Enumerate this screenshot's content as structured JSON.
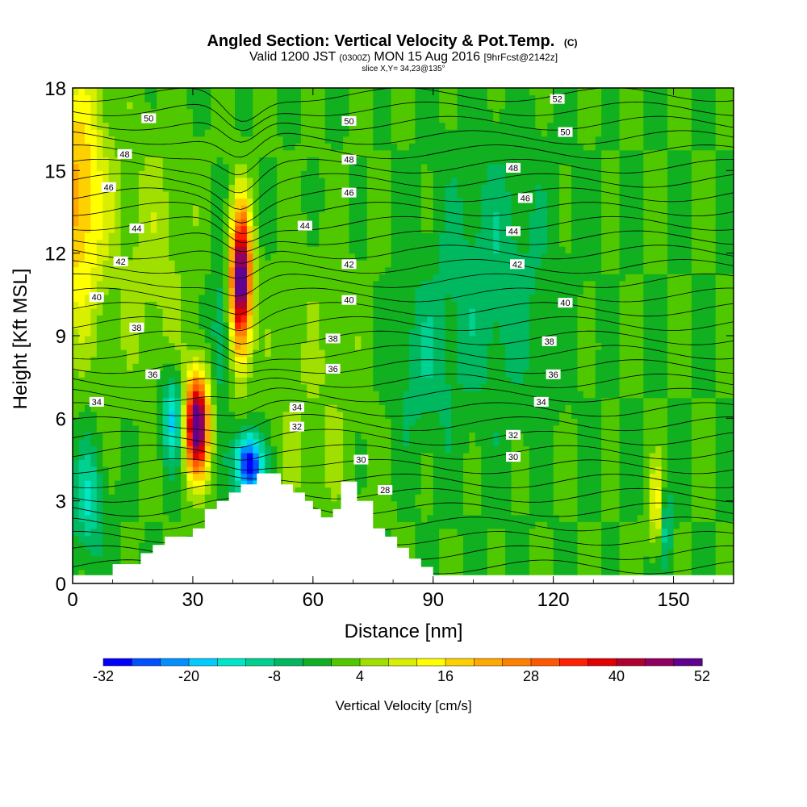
{
  "chart_data": {
    "type": "heatmap",
    "title": "Angled Section: Vertical Velocity & Pot.Temp.",
    "title_unit": "(C)",
    "subtitle_valid": "Valid 1200 JST",
    "subtitle_z": "(0300Z)",
    "subtitle_date": "MON 15 Aug 2016",
    "subtitle_fcst": "[9hrFcst@2142z]",
    "slice_label": "slice X,Y= 34,23@135°",
    "xlabel": "Distance [nm]",
    "ylabel": "Height [Kft MSL]",
    "xlim": [
      0,
      165
    ],
    "ylim": [
      0,
      18
    ],
    "x_ticks": [
      0,
      30,
      60,
      90,
      120,
      150
    ],
    "y_ticks": [
      0,
      3,
      6,
      9,
      12,
      15,
      18
    ],
    "colorbar": {
      "label": "Vertical Velocity [cm/s]",
      "min": -32,
      "max": 52,
      "tick_values": [
        -32,
        -20,
        -8,
        4,
        16,
        28,
        40,
        52
      ],
      "colors": [
        "#0000ff",
        "#0050ff",
        "#0090ff",
        "#00ccff",
        "#00e6c8",
        "#00d090",
        "#00b860",
        "#10b020",
        "#50c800",
        "#a0e000",
        "#d8f000",
        "#ffff00",
        "#ffd000",
        "#ffa800",
        "#ff8000",
        "#ff5800",
        "#ff2000",
        "#e00000",
        "#b00030",
        "#900060",
        "#600090"
      ]
    },
    "terrain": [
      [
        0,
        0.3
      ],
      [
        10,
        0.3
      ],
      [
        10,
        0.7
      ],
      [
        17,
        0.7
      ],
      [
        17,
        1.1
      ],
      [
        20,
        1.1
      ],
      [
        20,
        1.4
      ],
      [
        23,
        1.4
      ],
      [
        23,
        1.7
      ],
      [
        30,
        1.7
      ],
      [
        30,
        2.0
      ],
      [
        33,
        2.0
      ],
      [
        33,
        2.7
      ],
      [
        36,
        2.7
      ],
      [
        36,
        3.0
      ],
      [
        39,
        3.0
      ],
      [
        39,
        3.3
      ],
      [
        42,
        3.3
      ],
      [
        42,
        3.6
      ],
      [
        46,
        3.6
      ],
      [
        46,
        4.0
      ],
      [
        52,
        4.0
      ],
      [
        52,
        3.6
      ],
      [
        55,
        3.6
      ],
      [
        55,
        3.3
      ],
      [
        58,
        3.3
      ],
      [
        58,
        3.0
      ],
      [
        60,
        3.0
      ],
      [
        60,
        2.7
      ],
      [
        62,
        2.7
      ],
      [
        62,
        2.4
      ],
      [
        65,
        2.4
      ],
      [
        65,
        2.7
      ],
      [
        67,
        2.7
      ],
      [
        67,
        3.7
      ],
      [
        71,
        3.7
      ],
      [
        71,
        3.0
      ],
      [
        75,
        3.0
      ],
      [
        75,
        2.0
      ],
      [
        78,
        2.0
      ],
      [
        78,
        1.7
      ],
      [
        81,
        1.7
      ],
      [
        81,
        1.3
      ],
      [
        84,
        1.3
      ],
      [
        84,
        0.9
      ],
      [
        87,
        0.9
      ],
      [
        87,
        0.6
      ],
      [
        90,
        0.6
      ],
      [
        90,
        0.3
      ],
      [
        165,
        0.3
      ]
    ],
    "velocity_field": {
      "background": 0,
      "features": [
        {
          "x": 1,
          "y": 14,
          "sx": 7,
          "sy": 4.5,
          "amp": 22
        },
        {
          "x": 31,
          "y": 5.8,
          "sx": 3,
          "sy": 1.8,
          "amp": 54
        },
        {
          "x": 42,
          "y": 11,
          "sx": 2.6,
          "sy": 2.6,
          "amp": 54
        },
        {
          "x": 44,
          "y": 4.3,
          "sx": 3.5,
          "sy": 1.2,
          "amp": -34
        },
        {
          "x": 25,
          "y": 6,
          "sx": 3,
          "sy": 1.6,
          "amp": -18
        },
        {
          "x": 37,
          "y": 9,
          "sx": 2.5,
          "sy": 2.5,
          "amp": -10
        },
        {
          "x": 20,
          "y": 12,
          "sx": 10,
          "sy": 5,
          "amp": 6
        },
        {
          "x": 60,
          "y": 6,
          "sx": 14,
          "sy": 6,
          "amp": 4
        },
        {
          "x": 105,
          "y": 11,
          "sx": 14,
          "sy": 5,
          "amp": -7
        },
        {
          "x": 87,
          "y": 8,
          "sx": 8,
          "sy": 3,
          "amp": -6
        },
        {
          "x": 146,
          "y": 2.8,
          "sx": 2,
          "sy": 1.5,
          "amp": 15
        },
        {
          "x": 148,
          "y": 2.2,
          "sx": 1.5,
          "sy": 1.5,
          "amp": -14
        },
        {
          "x": 4,
          "y": 3,
          "sx": 4,
          "sy": 2,
          "amp": -12
        }
      ]
    },
    "isentropes": [
      {
        "value": "28",
        "label_at": [
          78,
          3.4
        ]
      },
      {
        "value": "30",
        "label_at": [
          72,
          4.5
        ]
      },
      {
        "value": "30",
        "label_at": [
          110,
          4.6
        ]
      },
      {
        "value": "32",
        "label_at": [
          56,
          5.7
        ]
      },
      {
        "value": "32",
        "label_at": [
          110,
          5.4
        ]
      },
      {
        "value": "34",
        "label_at": [
          6,
          6.6
        ]
      },
      {
        "value": "34",
        "label_at": [
          56,
          6.4
        ]
      },
      {
        "value": "34",
        "label_at": [
          117,
          6.6
        ]
      },
      {
        "value": "36",
        "label_at": [
          20,
          7.6
        ]
      },
      {
        "value": "36",
        "label_at": [
          65,
          7.8
        ]
      },
      {
        "value": "36",
        "label_at": [
          120,
          7.6
        ]
      },
      {
        "value": "38",
        "label_at": [
          16,
          9.3
        ]
      },
      {
        "value": "38",
        "label_at": [
          65,
          8.9
        ]
      },
      {
        "value": "38",
        "label_at": [
          119,
          8.8
        ]
      },
      {
        "value": "40",
        "label_at": [
          6,
          10.4
        ]
      },
      {
        "value": "40",
        "label_at": [
          69,
          10.3
        ]
      },
      {
        "value": "40",
        "label_at": [
          123,
          10.2
        ]
      },
      {
        "value": "42",
        "label_at": [
          12,
          11.7
        ]
      },
      {
        "value": "42",
        "label_at": [
          69,
          11.6
        ]
      },
      {
        "value": "42",
        "label_at": [
          111,
          11.6
        ]
      },
      {
        "value": "44",
        "label_at": [
          16,
          12.9
        ]
      },
      {
        "value": "44",
        "label_at": [
          58,
          13.0
        ]
      },
      {
        "value": "44",
        "label_at": [
          110,
          12.8
        ]
      },
      {
        "value": "46",
        "label_at": [
          9,
          14.4
        ]
      },
      {
        "value": "46",
        "label_at": [
          69,
          14.2
        ]
      },
      {
        "value": "46",
        "label_at": [
          113,
          14.0
        ]
      },
      {
        "value": "48",
        "label_at": [
          13,
          15.6
        ]
      },
      {
        "value": "48",
        "label_at": [
          69,
          15.4
        ]
      },
      {
        "value": "48",
        "label_at": [
          110,
          15.1
        ]
      },
      {
        "value": "50",
        "label_at": [
          19,
          16.9
        ]
      },
      {
        "value": "50",
        "label_at": [
          69,
          16.8
        ]
      },
      {
        "value": "50",
        "label_at": [
          123,
          16.4
        ]
      },
      {
        "value": "52",
        "label_at": [
          121,
          17.6
        ]
      }
    ]
  }
}
